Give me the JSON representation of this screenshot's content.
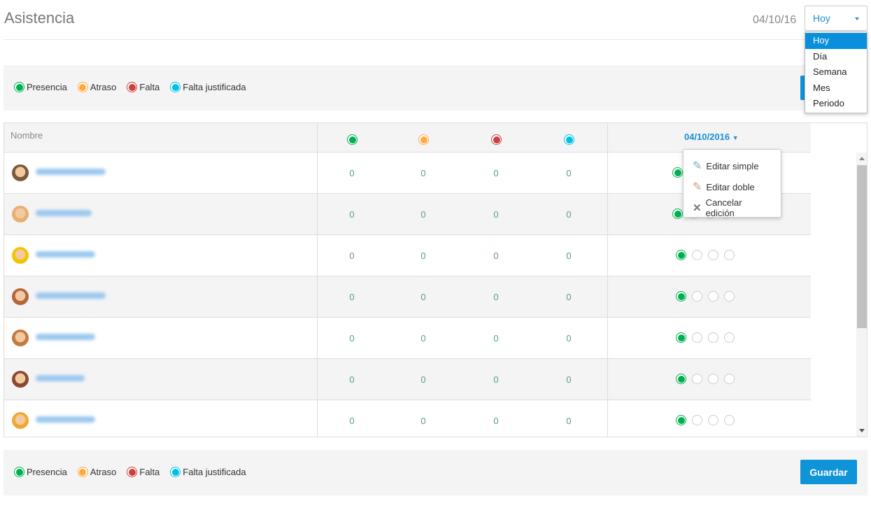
{
  "header": {
    "title": "Asistencia",
    "date": "04/10/16",
    "period_select": {
      "value": "Hoy",
      "options": [
        "Hoy",
        "Día",
        "Semana",
        "Mes",
        "Periodo"
      ]
    }
  },
  "legend": [
    {
      "label": "Presencia",
      "color": "#00b050"
    },
    {
      "label": "Atraso",
      "color": "#ffa940"
    },
    {
      "label": "Falta",
      "color": "#c9403e"
    },
    {
      "label": "Falta justificada",
      "color": "#00c0e8"
    }
  ],
  "table": {
    "name_header": "Nombre",
    "date_header": "04/10/2016",
    "rows": [
      {
        "counts": [
          "0",
          "0",
          "0",
          "0"
        ],
        "status": "presencia",
        "avatar": "#7a5a3a"
      },
      {
        "counts": [
          "0",
          "0",
          "0",
          "0"
        ],
        "status": "presencia",
        "avatar": "#e6b070"
      },
      {
        "counts": [
          "0",
          "0",
          "0",
          "0"
        ],
        "status": "presencia",
        "avatar": "#f2c400"
      },
      {
        "counts": [
          "0",
          "0",
          "0",
          "0"
        ],
        "status": "presencia",
        "avatar": "#b5653a"
      },
      {
        "counts": [
          "0",
          "0",
          "0",
          "0"
        ],
        "status": "presencia",
        "avatar": "#c47a40"
      },
      {
        "counts": [
          "0",
          "0",
          "0",
          "0"
        ],
        "status": "presencia",
        "avatar": "#8a4a30"
      },
      {
        "counts": [
          "0",
          "0",
          "0",
          "0"
        ],
        "status": "presencia",
        "avatar": "#f0a830"
      }
    ]
  },
  "context_menu": [
    {
      "label": "Editar simple",
      "icon": "pencil-icon"
    },
    {
      "label": "Editar doble",
      "icon": "pencil-icon"
    },
    {
      "label": "Cancelar edición",
      "icon": "close-icon"
    }
  ],
  "footer": {
    "save_label": "Guardar"
  }
}
